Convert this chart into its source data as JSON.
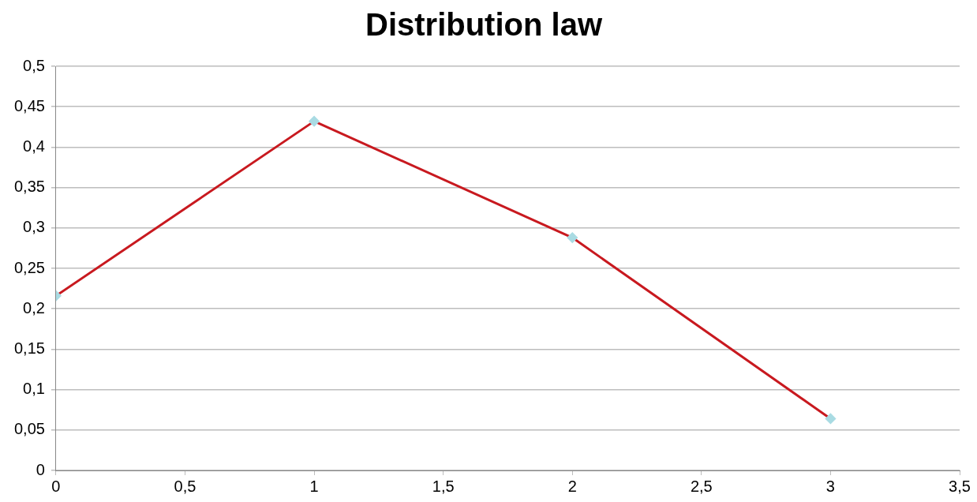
{
  "chart_data": {
    "type": "line",
    "title": "Distribution law",
    "x": [
      0,
      1,
      2,
      3
    ],
    "series": [
      {
        "color": "#c8191f",
        "colors": [
          "#a9dbe3",
          "#a9dbe3",
          "#a9dbe3",
          "#a9dbe3"
        ],
        "values": [
          0.216,
          0.432,
          0.288,
          0.064
        ]
      }
    ],
    "xlim": [
      0,
      3.5
    ],
    "xticks": [
      0,
      {
        "value": 0.5,
        "label": "0,5"
      },
      1,
      {
        "value": 1.5,
        "label": "1,5"
      },
      2,
      {
        "value": 2.5,
        "label": "2,5"
      },
      3,
      {
        "value": 3.5,
        "label": "3,5"
      }
    ],
    "ylim": [
      0,
      0.5
    ],
    "yticks": [
      0,
      {
        "value": 0.05,
        "label": "0,05"
      },
      {
        "value": 0.1,
        "label": "0,1"
      },
      {
        "value": 0.15,
        "label": "0,15"
      },
      {
        "value": 0.2,
        "label": "0,2"
      },
      {
        "value": 0.25,
        "label": "0,25"
      },
      {
        "value": 0.3,
        "label": "0,3"
      },
      {
        "value": 0.35,
        "label": "0,35"
      },
      {
        "value": 0.4,
        "label": "0,4"
      },
      {
        "value": 0.45,
        "label": "0,45"
      },
      {
        "value": 0.5,
        "label": "0,5"
      }
    ],
    "grid": "y",
    "marker": "diamond",
    "line_style": "solid",
    "legend": false
  }
}
